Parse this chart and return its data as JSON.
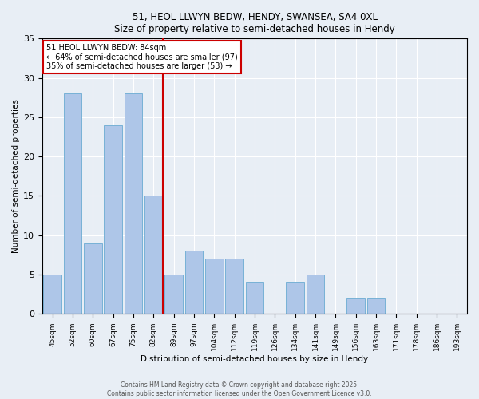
{
  "title1": "51, HEOL LLWYN BEDW, HENDY, SWANSEA, SA4 0XL",
  "title2": "Size of property relative to semi-detached houses in Hendy",
  "xlabel": "Distribution of semi-detached houses by size in Hendy",
  "ylabel": "Number of semi-detached properties",
  "categories": [
    "45sqm",
    "52sqm",
    "60sqm",
    "67sqm",
    "75sqm",
    "82sqm",
    "89sqm",
    "97sqm",
    "104sqm",
    "112sqm",
    "119sqm",
    "126sqm",
    "134sqm",
    "141sqm",
    "149sqm",
    "156sqm",
    "163sqm",
    "171sqm",
    "178sqm",
    "186sqm",
    "193sqm"
  ],
  "values": [
    5,
    28,
    9,
    24,
    28,
    15,
    5,
    8,
    7,
    7,
    4,
    0,
    4,
    5,
    0,
    2,
    2,
    0,
    0,
    0,
    0
  ],
  "bar_color": "#aec6e8",
  "bar_edge_color": "#6aabd2",
  "property_line_index": 5,
  "property_sqm": 84,
  "annotation_title": "51 HEOL LLWYN BEDW: 84sqm",
  "annotation_left": "← 64% of semi-detached houses are smaller (97)",
  "annotation_right": "35% of semi-detached houses are larger (53) →",
  "annotation_box_color": "#ffffff",
  "annotation_box_edge": "#cc0000",
  "vline_color": "#cc0000",
  "background_color": "#e8eef5",
  "footer1": "Contains HM Land Registry data © Crown copyright and database right 2025.",
  "footer2": "Contains public sector information licensed under the Open Government Licence v3.0.",
  "ylim": [
    0,
    35
  ],
  "yticks": [
    0,
    5,
    10,
    15,
    20,
    25,
    30,
    35
  ]
}
